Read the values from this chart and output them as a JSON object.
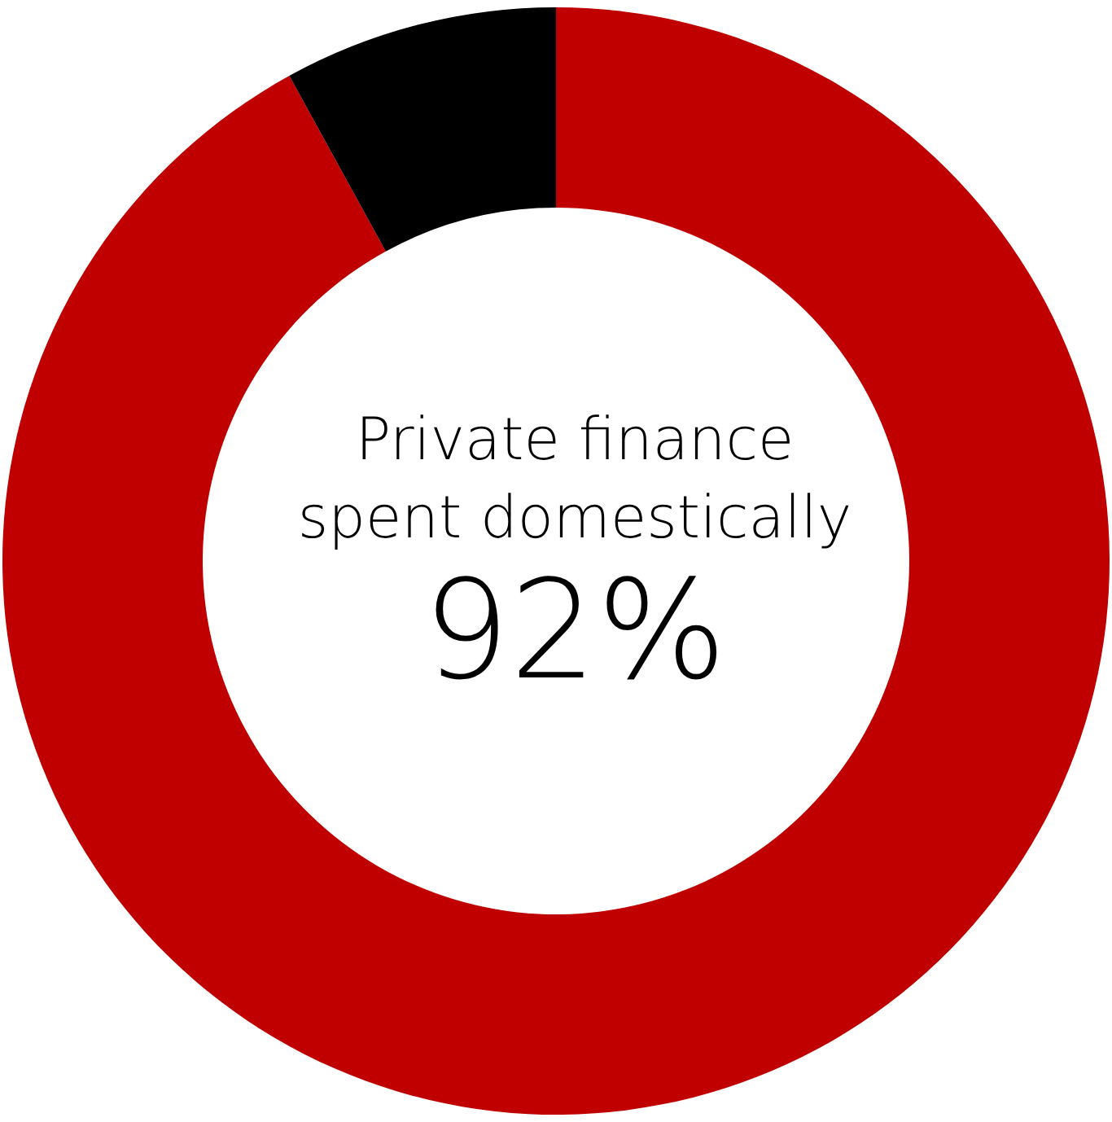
{
  "chart_data": {
    "type": "donut",
    "categories": [
      null,
      null
    ],
    "values": [
      92,
      8
    ],
    "colors": [
      "#c00000",
      "#000000"
    ],
    "value_labels": [
      "92%",
      null
    ],
    "annotations": [
      "Private finance\nspent domestically"
    ]
  }
}
